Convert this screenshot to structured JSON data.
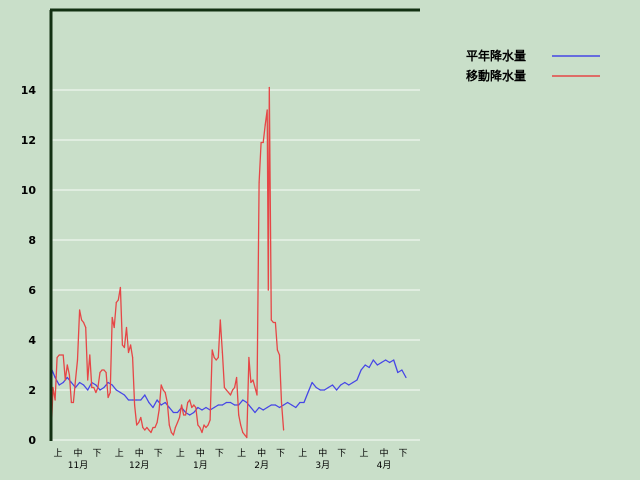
{
  "chart_data": {
    "type": "line",
    "title": "",
    "xlabel": "",
    "ylabel": "",
    "ylim": [
      0,
      16
    ],
    "yticks": [
      0,
      2,
      4,
      6,
      8,
      10,
      12,
      14
    ],
    "grid": true,
    "legend_position": "top-right",
    "period_labels": [
      "上",
      "中",
      "下"
    ],
    "months": [
      "11月",
      "12月",
      "1月",
      "2月",
      "3月",
      "4月"
    ],
    "x_unit": "day_index_from_nov_1",
    "series": [
      {
        "name": "平年降水量",
        "color": "#4646e6",
        "points": [
          [
            0,
            2.9
          ],
          [
            2,
            2.5
          ],
          [
            4,
            2.2
          ],
          [
            6,
            2.3
          ],
          [
            8,
            2.5
          ],
          [
            10,
            2.3
          ],
          [
            12,
            2.1
          ],
          [
            14,
            2.3
          ],
          [
            16,
            2.2
          ],
          [
            18,
            2.0
          ],
          [
            20,
            2.3
          ],
          [
            22,
            2.2
          ],
          [
            24,
            2.0
          ],
          [
            26,
            2.1
          ],
          [
            28,
            2.3
          ],
          [
            30,
            2.2
          ],
          [
            32,
            2.0
          ],
          [
            34,
            1.9
          ],
          [
            36,
            1.8
          ],
          [
            38,
            1.6
          ],
          [
            40,
            1.6
          ],
          [
            42,
            1.6
          ],
          [
            44,
            1.6
          ],
          [
            46,
            1.8
          ],
          [
            48,
            1.5
          ],
          [
            50,
            1.3
          ],
          [
            52,
            1.6
          ],
          [
            54,
            1.4
          ],
          [
            56,
            1.5
          ],
          [
            58,
            1.3
          ],
          [
            60,
            1.1
          ],
          [
            62,
            1.1
          ],
          [
            64,
            1.3
          ],
          [
            66,
            1.1
          ],
          [
            68,
            1.0
          ],
          [
            70,
            1.1
          ],
          [
            72,
            1.3
          ],
          [
            74,
            1.2
          ],
          [
            76,
            1.3
          ],
          [
            78,
            1.2
          ],
          [
            80,
            1.3
          ],
          [
            82,
            1.4
          ],
          [
            84,
            1.4
          ],
          [
            86,
            1.5
          ],
          [
            88,
            1.5
          ],
          [
            90,
            1.4
          ],
          [
            92,
            1.4
          ],
          [
            94,
            1.6
          ],
          [
            96,
            1.5
          ],
          [
            98,
            1.3
          ],
          [
            100,
            1.1
          ],
          [
            102,
            1.3
          ],
          [
            104,
            1.2
          ],
          [
            106,
            1.3
          ],
          [
            108,
            1.4
          ],
          [
            110,
            1.4
          ],
          [
            112,
            1.3
          ],
          [
            114,
            1.4
          ],
          [
            116,
            1.5
          ],
          [
            118,
            1.4
          ],
          [
            120,
            1.3
          ],
          [
            122,
            1.5
          ],
          [
            124,
            1.5
          ],
          [
            126,
            1.9
          ],
          [
            128,
            2.3
          ],
          [
            130,
            2.1
          ],
          [
            132,
            2.0
          ],
          [
            134,
            2.0
          ],
          [
            136,
            2.1
          ],
          [
            138,
            2.2
          ],
          [
            140,
            2.0
          ],
          [
            142,
            2.2
          ],
          [
            144,
            2.3
          ],
          [
            146,
            2.2
          ],
          [
            148,
            2.3
          ],
          [
            150,
            2.4
          ],
          [
            152,
            2.8
          ],
          [
            154,
            3.0
          ],
          [
            156,
            2.9
          ],
          [
            158,
            3.2
          ],
          [
            160,
            3.0
          ],
          [
            162,
            3.1
          ],
          [
            164,
            3.2
          ],
          [
            166,
            3.1
          ],
          [
            168,
            3.2
          ],
          [
            170,
            2.7
          ],
          [
            172,
            2.8
          ],
          [
            174,
            2.5
          ]
        ]
      },
      {
        "name": "移動降水量",
        "color": "#e64646",
        "points": [
          [
            0,
            0
          ],
          [
            1,
            2.1
          ],
          [
            2,
            1.6
          ],
          [
            3,
            3.3
          ],
          [
            4,
            3.4
          ],
          [
            5,
            3.4
          ],
          [
            6,
            3.4
          ],
          [
            7,
            2.4
          ],
          [
            8,
            3.0
          ],
          [
            9,
            2.6
          ],
          [
            10,
            1.5
          ],
          [
            11,
            1.5
          ],
          [
            12,
            2.4
          ],
          [
            13,
            3.2
          ],
          [
            14,
            5.2
          ],
          [
            15,
            4.8
          ],
          [
            16,
            4.7
          ],
          [
            17,
            4.5
          ],
          [
            18,
            2.4
          ],
          [
            19,
            3.4
          ],
          [
            20,
            2.1
          ],
          [
            21,
            2.1
          ],
          [
            22,
            1.9
          ],
          [
            23,
            2.1
          ],
          [
            24,
            2.7
          ],
          [
            25,
            2.8
          ],
          [
            26,
            2.8
          ],
          [
            27,
            2.7
          ],
          [
            28,
            1.7
          ],
          [
            29,
            1.9
          ],
          [
            30,
            4.9
          ],
          [
            31,
            4.5
          ],
          [
            32,
            5.5
          ],
          [
            33,
            5.6
          ],
          [
            34,
            6.1
          ],
          [
            35,
            3.8
          ],
          [
            36,
            3.7
          ],
          [
            37,
            4.5
          ],
          [
            38,
            3.5
          ],
          [
            39,
            3.8
          ],
          [
            40,
            3.3
          ],
          [
            41,
            1.4
          ],
          [
            42,
            0.6
          ],
          [
            43,
            0.7
          ],
          [
            44,
            0.9
          ],
          [
            45,
            0.5
          ],
          [
            46,
            0.4
          ],
          [
            47,
            0.5
          ],
          [
            48,
            0.4
          ],
          [
            49,
            0.3
          ],
          [
            50,
            0.5
          ],
          [
            51,
            0.5
          ],
          [
            52,
            0.7
          ],
          [
            53,
            1.2
          ],
          [
            54,
            2.2
          ],
          [
            55,
            2.0
          ],
          [
            56,
            1.9
          ],
          [
            57,
            1.5
          ],
          [
            58,
            0.6
          ],
          [
            59,
            0.3
          ],
          [
            60,
            0.2
          ],
          [
            61,
            0.5
          ],
          [
            62,
            0.7
          ],
          [
            63,
            0.9
          ],
          [
            64,
            1.4
          ],
          [
            65,
            1.0
          ],
          [
            66,
            1.0
          ],
          [
            67,
            1.5
          ],
          [
            68,
            1.6
          ],
          [
            69,
            1.3
          ],
          [
            70,
            1.4
          ],
          [
            71,
            1.3
          ],
          [
            72,
            0.6
          ],
          [
            73,
            0.5
          ],
          [
            74,
            0.3
          ],
          [
            75,
            0.6
          ],
          [
            76,
            0.5
          ],
          [
            77,
            0.6
          ],
          [
            78,
            0.8
          ],
          [
            79,
            3.6
          ],
          [
            80,
            3.3
          ],
          [
            81,
            3.2
          ],
          [
            82,
            3.3
          ],
          [
            83,
            4.8
          ],
          [
            84,
            3.5
          ],
          [
            85,
            2.1
          ],
          [
            86,
            2.0
          ],
          [
            87,
            1.9
          ],
          [
            88,
            1.8
          ],
          [
            89,
            2.0
          ],
          [
            90,
            2.1
          ],
          [
            91,
            2.5
          ],
          [
            92,
            1.0
          ],
          [
            93,
            0.6
          ],
          [
            94,
            0.3
          ],
          [
            95,
            0.2
          ],
          [
            96,
            0.1
          ],
          [
            97,
            3.3
          ],
          [
            98,
            2.3
          ],
          [
            99,
            2.4
          ],
          [
            100,
            2.1
          ],
          [
            101,
            1.8
          ],
          [
            102,
            10.3
          ],
          [
            103,
            11.9
          ],
          [
            104,
            11.9
          ],
          [
            105,
            12.6
          ],
          [
            106,
            13.2
          ],
          [
            106.5,
            6.0
          ],
          [
            107,
            14.1
          ],
          [
            108,
            4.8
          ],
          [
            109,
            4.7
          ],
          [
            110,
            4.7
          ],
          [
            111,
            3.6
          ],
          [
            112,
            3.4
          ],
          [
            113,
            1.5
          ],
          [
            114,
            0.4
          ]
        ]
      }
    ]
  }
}
